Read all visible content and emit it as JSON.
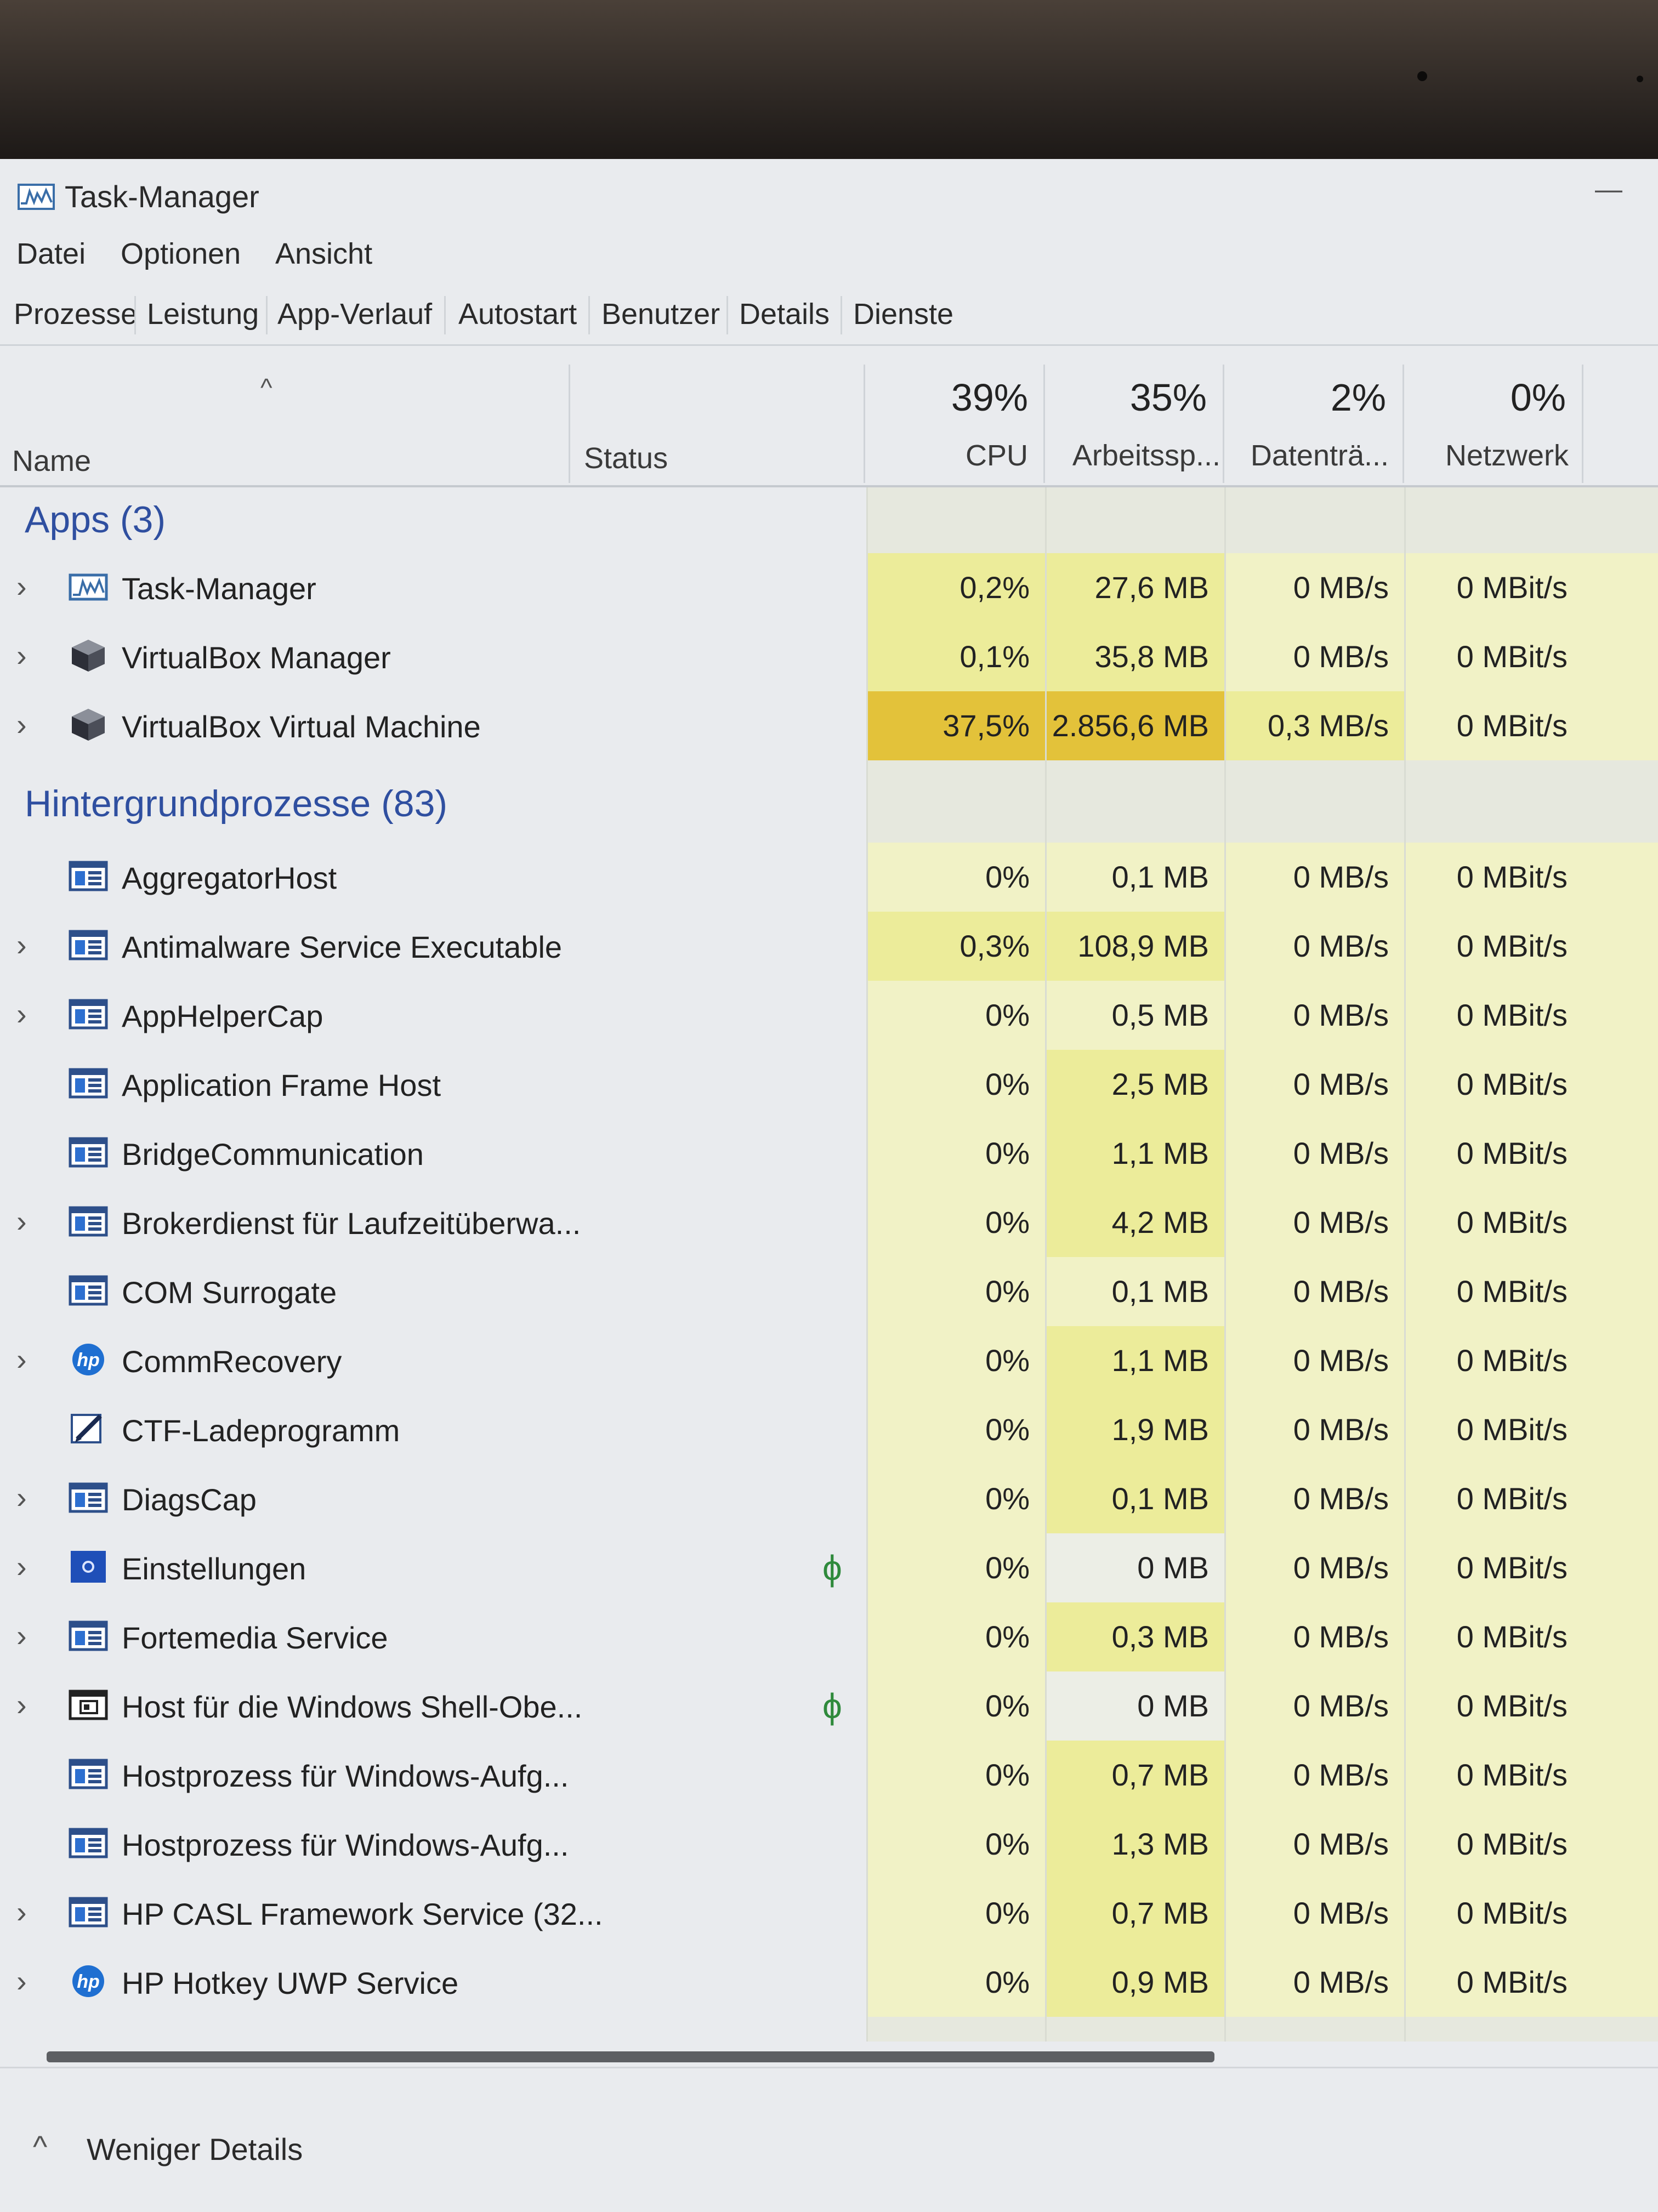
{
  "window": {
    "title": "Task-Manager",
    "minimize": "—"
  },
  "menu": [
    "Datei",
    "Optionen",
    "Ansicht"
  ],
  "tabs": [
    "Prozesse",
    "Leistung",
    "App-Verlauf",
    "Autostart",
    "Benutzer",
    "Details",
    "Dienste"
  ],
  "active_tab": "Prozesse",
  "columns": {
    "name": "Name",
    "status": "Status",
    "cpu": {
      "percent": "39%",
      "label": "CPU"
    },
    "memory": {
      "percent": "35%",
      "label": "Arbeitssp..."
    },
    "disk": {
      "percent": "2%",
      "label": "Datenträ..."
    },
    "network": {
      "percent": "0%",
      "label": "Netzwerk"
    }
  },
  "groups": {
    "apps": {
      "title": "Apps (3)",
      "rows": [
        {
          "name": "Task-Manager",
          "icon": "task-manager-icon",
          "expandable": true,
          "status": "",
          "cpu": "0,2%",
          "mem": "27,6 MB",
          "disk": "0 MB/s",
          "net": "0 MBit/s",
          "heat": {
            "cpu": 2,
            "mem": 2,
            "disk": 1,
            "net": 1
          }
        },
        {
          "name": "VirtualBox Manager",
          "icon": "virtualbox-icon",
          "expandable": true,
          "status": "",
          "cpu": "0,1%",
          "mem": "35,8 MB",
          "disk": "0 MB/s",
          "net": "0 MBit/s",
          "heat": {
            "cpu": 2,
            "mem": 2,
            "disk": 1,
            "net": 1
          }
        },
        {
          "name": "VirtualBox Virtual Machine",
          "icon": "virtualbox-icon",
          "expandable": true,
          "status": "",
          "cpu": "37,5%",
          "mem": "2.856,6 MB",
          "disk": "0,3 MB/s",
          "net": "0 MBit/s",
          "heat": {
            "cpu": 4,
            "mem": 4,
            "disk": 2,
            "net": 1
          }
        }
      ]
    },
    "background": {
      "title": "Hintergrundprozesse (83)",
      "rows": [
        {
          "name": "AggregatorHost",
          "icon": "window-process-icon",
          "expandable": false,
          "status": "",
          "cpu": "0%",
          "mem": "0,1 MB",
          "disk": "0 MB/s",
          "net": "0 MBit/s",
          "heat": {
            "cpu": 1,
            "mem": 1,
            "disk": 1,
            "net": 1
          }
        },
        {
          "name": "Antimalware Service Executable",
          "icon": "window-process-icon",
          "expandable": true,
          "status": "",
          "cpu": "0,3%",
          "mem": "108,9 MB",
          "disk": "0 MB/s",
          "net": "0 MBit/s",
          "heat": {
            "cpu": 2,
            "mem": 2,
            "disk": 1,
            "net": 1
          }
        },
        {
          "name": "AppHelperCap",
          "icon": "window-process-icon",
          "expandable": true,
          "status": "",
          "cpu": "0%",
          "mem": "0,5 MB",
          "disk": "0 MB/s",
          "net": "0 MBit/s",
          "heat": {
            "cpu": 1,
            "mem": 1,
            "disk": 1,
            "net": 1
          }
        },
        {
          "name": "Application Frame Host",
          "icon": "window-process-icon",
          "expandable": false,
          "status": "",
          "cpu": "0%",
          "mem": "2,5 MB",
          "disk": "0 MB/s",
          "net": "0 MBit/s",
          "heat": {
            "cpu": 1,
            "mem": 2,
            "disk": 1,
            "net": 1
          }
        },
        {
          "name": "BridgeCommunication",
          "icon": "window-process-icon",
          "expandable": false,
          "status": "",
          "cpu": "0%",
          "mem": "1,1 MB",
          "disk": "0 MB/s",
          "net": "0 MBit/s",
          "heat": {
            "cpu": 1,
            "mem": 2,
            "disk": 1,
            "net": 1
          }
        },
        {
          "name": "Brokerdienst für Laufzeitüberwa...",
          "icon": "window-process-icon",
          "expandable": true,
          "status": "",
          "cpu": "0%",
          "mem": "4,2 MB",
          "disk": "0 MB/s",
          "net": "0 MBit/s",
          "heat": {
            "cpu": 1,
            "mem": 2,
            "disk": 1,
            "net": 1
          }
        },
        {
          "name": "COM Surrogate",
          "icon": "window-process-icon",
          "expandable": false,
          "status": "",
          "cpu": "0%",
          "mem": "0,1 MB",
          "disk": "0 MB/s",
          "net": "0 MBit/s",
          "heat": {
            "cpu": 1,
            "mem": 1,
            "disk": 1,
            "net": 1
          }
        },
        {
          "name": "CommRecovery",
          "icon": "hp-logo-icon",
          "expandable": true,
          "status": "",
          "cpu": "0%",
          "mem": "1,1 MB",
          "disk": "0 MB/s",
          "net": "0 MBit/s",
          "heat": {
            "cpu": 1,
            "mem": 2,
            "disk": 1,
            "net": 1
          }
        },
        {
          "name": "CTF-Ladeprogramm",
          "icon": "pen-edit-icon",
          "expandable": false,
          "status": "",
          "cpu": "0%",
          "mem": "1,9 MB",
          "disk": "0 MB/s",
          "net": "0 MBit/s",
          "heat": {
            "cpu": 1,
            "mem": 2,
            "disk": 1,
            "net": 1
          }
        },
        {
          "name": "DiagsCap",
          "icon": "window-process-icon",
          "expandable": true,
          "status": "",
          "cpu": "0%",
          "mem": "0,1 MB",
          "disk": "0 MB/s",
          "net": "0 MBit/s",
          "heat": {
            "cpu": 1,
            "mem": 2,
            "disk": 1,
            "net": 1
          }
        },
        {
          "name": "Einstellungen",
          "icon": "settings-gear-icon",
          "expandable": true,
          "status": "ϕ",
          "cpu": "0%",
          "mem": "0 MB",
          "disk": "0 MB/s",
          "net": "0 MBit/s",
          "heat": {
            "cpu": 1,
            "mem": 0,
            "disk": 1,
            "net": 1
          }
        },
        {
          "name": "Fortemedia Service",
          "icon": "window-process-icon",
          "expandable": true,
          "status": "",
          "cpu": "0%",
          "mem": "0,3 MB",
          "disk": "0 MB/s",
          "net": "0 MBit/s",
          "heat": {
            "cpu": 1,
            "mem": 2,
            "disk": 1,
            "net": 1
          }
        },
        {
          "name": "Host für die Windows Shell-Obe...",
          "icon": "shell-window-icon",
          "expandable": true,
          "status": "ϕ",
          "cpu": "0%",
          "mem": "0 MB",
          "disk": "0 MB/s",
          "net": "0 MBit/s",
          "heat": {
            "cpu": 1,
            "mem": 0,
            "disk": 1,
            "net": 1
          }
        },
        {
          "name": "Hostprozess für Windows-Aufg...",
          "icon": "window-process-icon",
          "expandable": false,
          "status": "",
          "cpu": "0%",
          "mem": "0,7 MB",
          "disk": "0 MB/s",
          "net": "0 MBit/s",
          "heat": {
            "cpu": 1,
            "mem": 2,
            "disk": 1,
            "net": 1
          }
        },
        {
          "name": "Hostprozess für Windows-Aufg...",
          "icon": "window-process-icon",
          "expandable": false,
          "status": "",
          "cpu": "0%",
          "mem": "1,3 MB",
          "disk": "0 MB/s",
          "net": "0 MBit/s",
          "heat": {
            "cpu": 1,
            "mem": 2,
            "disk": 1,
            "net": 1
          }
        },
        {
          "name": "HP CASL Framework Service (32...",
          "icon": "window-process-icon",
          "expandable": true,
          "status": "",
          "cpu": "0%",
          "mem": "0,7 MB",
          "disk": "0 MB/s",
          "net": "0 MBit/s",
          "heat": {
            "cpu": 1,
            "mem": 2,
            "disk": 1,
            "net": 1
          }
        },
        {
          "name": "HP Hotkey UWP Service",
          "icon": "hp-logo-icon",
          "expandable": true,
          "status": "",
          "cpu": "0%",
          "mem": "0,9 MB",
          "disk": "0 MB/s",
          "net": "0 MBit/s",
          "heat": {
            "cpu": 1,
            "mem": 2,
            "disk": 1,
            "net": 1
          }
        }
      ]
    }
  },
  "footer": {
    "label": "Weniger Details"
  },
  "colors": {
    "heat0": "#eceee6",
    "heat1": "#f1f2c6",
    "heat2": "#ecec9a",
    "heat3": "#e8dc6c",
    "heat4": "#e3c23a",
    "group_title": "#2f4fa0",
    "accent": "#3a6ea8"
  }
}
